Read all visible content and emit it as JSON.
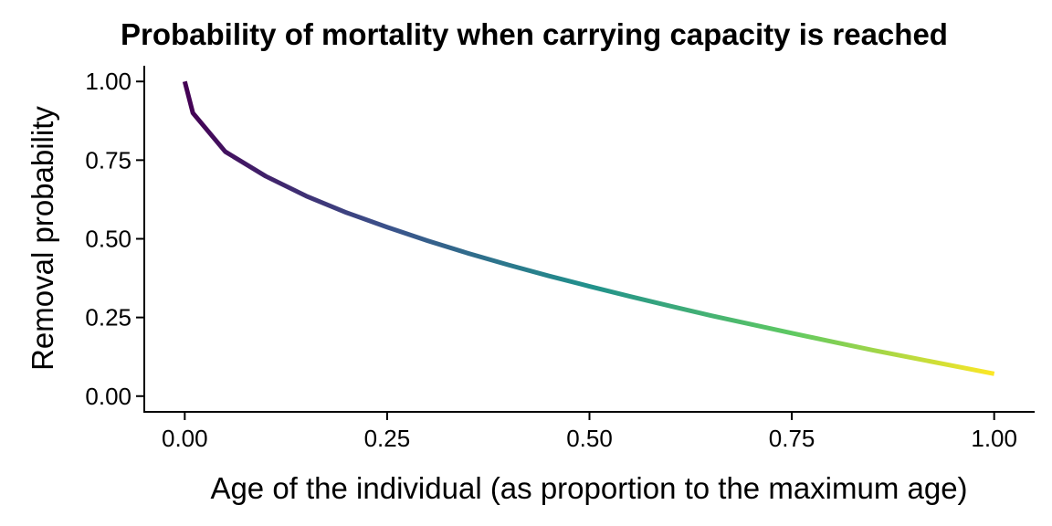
{
  "chart_data": {
    "type": "line",
    "title": "Probability of mortality when carrying capacity is reached",
    "xlabel": "Age of the individual (as proportion to the maximum age)",
    "ylabel": "Removal probability",
    "xlim": [
      -0.05,
      1.05
    ],
    "ylim": [
      -0.05,
      1.05
    ],
    "x_ticks": [
      0.0,
      0.25,
      0.5,
      0.75,
      1.0
    ],
    "x_tick_labels": [
      "0.00",
      "0.25",
      "0.50",
      "0.75",
      "1.00"
    ],
    "y_ticks": [
      0.0,
      0.25,
      0.5,
      0.75,
      1.0
    ],
    "y_tick_labels": [
      "0.00",
      "0.25",
      "0.50",
      "0.75",
      "1.00"
    ],
    "grid": false,
    "legend": "none",
    "color_scale": "viridis",
    "colors": [
      "#440154",
      "#3b528b",
      "#21918c",
      "#5ec962",
      "#fde725"
    ],
    "x": [
      0.0,
      0.01,
      0.05,
      0.1,
      0.15,
      0.2,
      0.25,
      0.3,
      0.35,
      0.4,
      0.45,
      0.5,
      0.55,
      0.6,
      0.65,
      0.7,
      0.75,
      0.8,
      0.85,
      0.9,
      0.95,
      1.0
    ],
    "y": [
      1.0,
      0.9,
      0.777,
      0.699,
      0.636,
      0.583,
      0.537,
      0.494,
      0.454,
      0.417,
      0.382,
      0.349,
      0.317,
      0.286,
      0.256,
      0.228,
      0.2,
      0.173,
      0.146,
      0.121,
      0.096,
      0.071
    ]
  }
}
